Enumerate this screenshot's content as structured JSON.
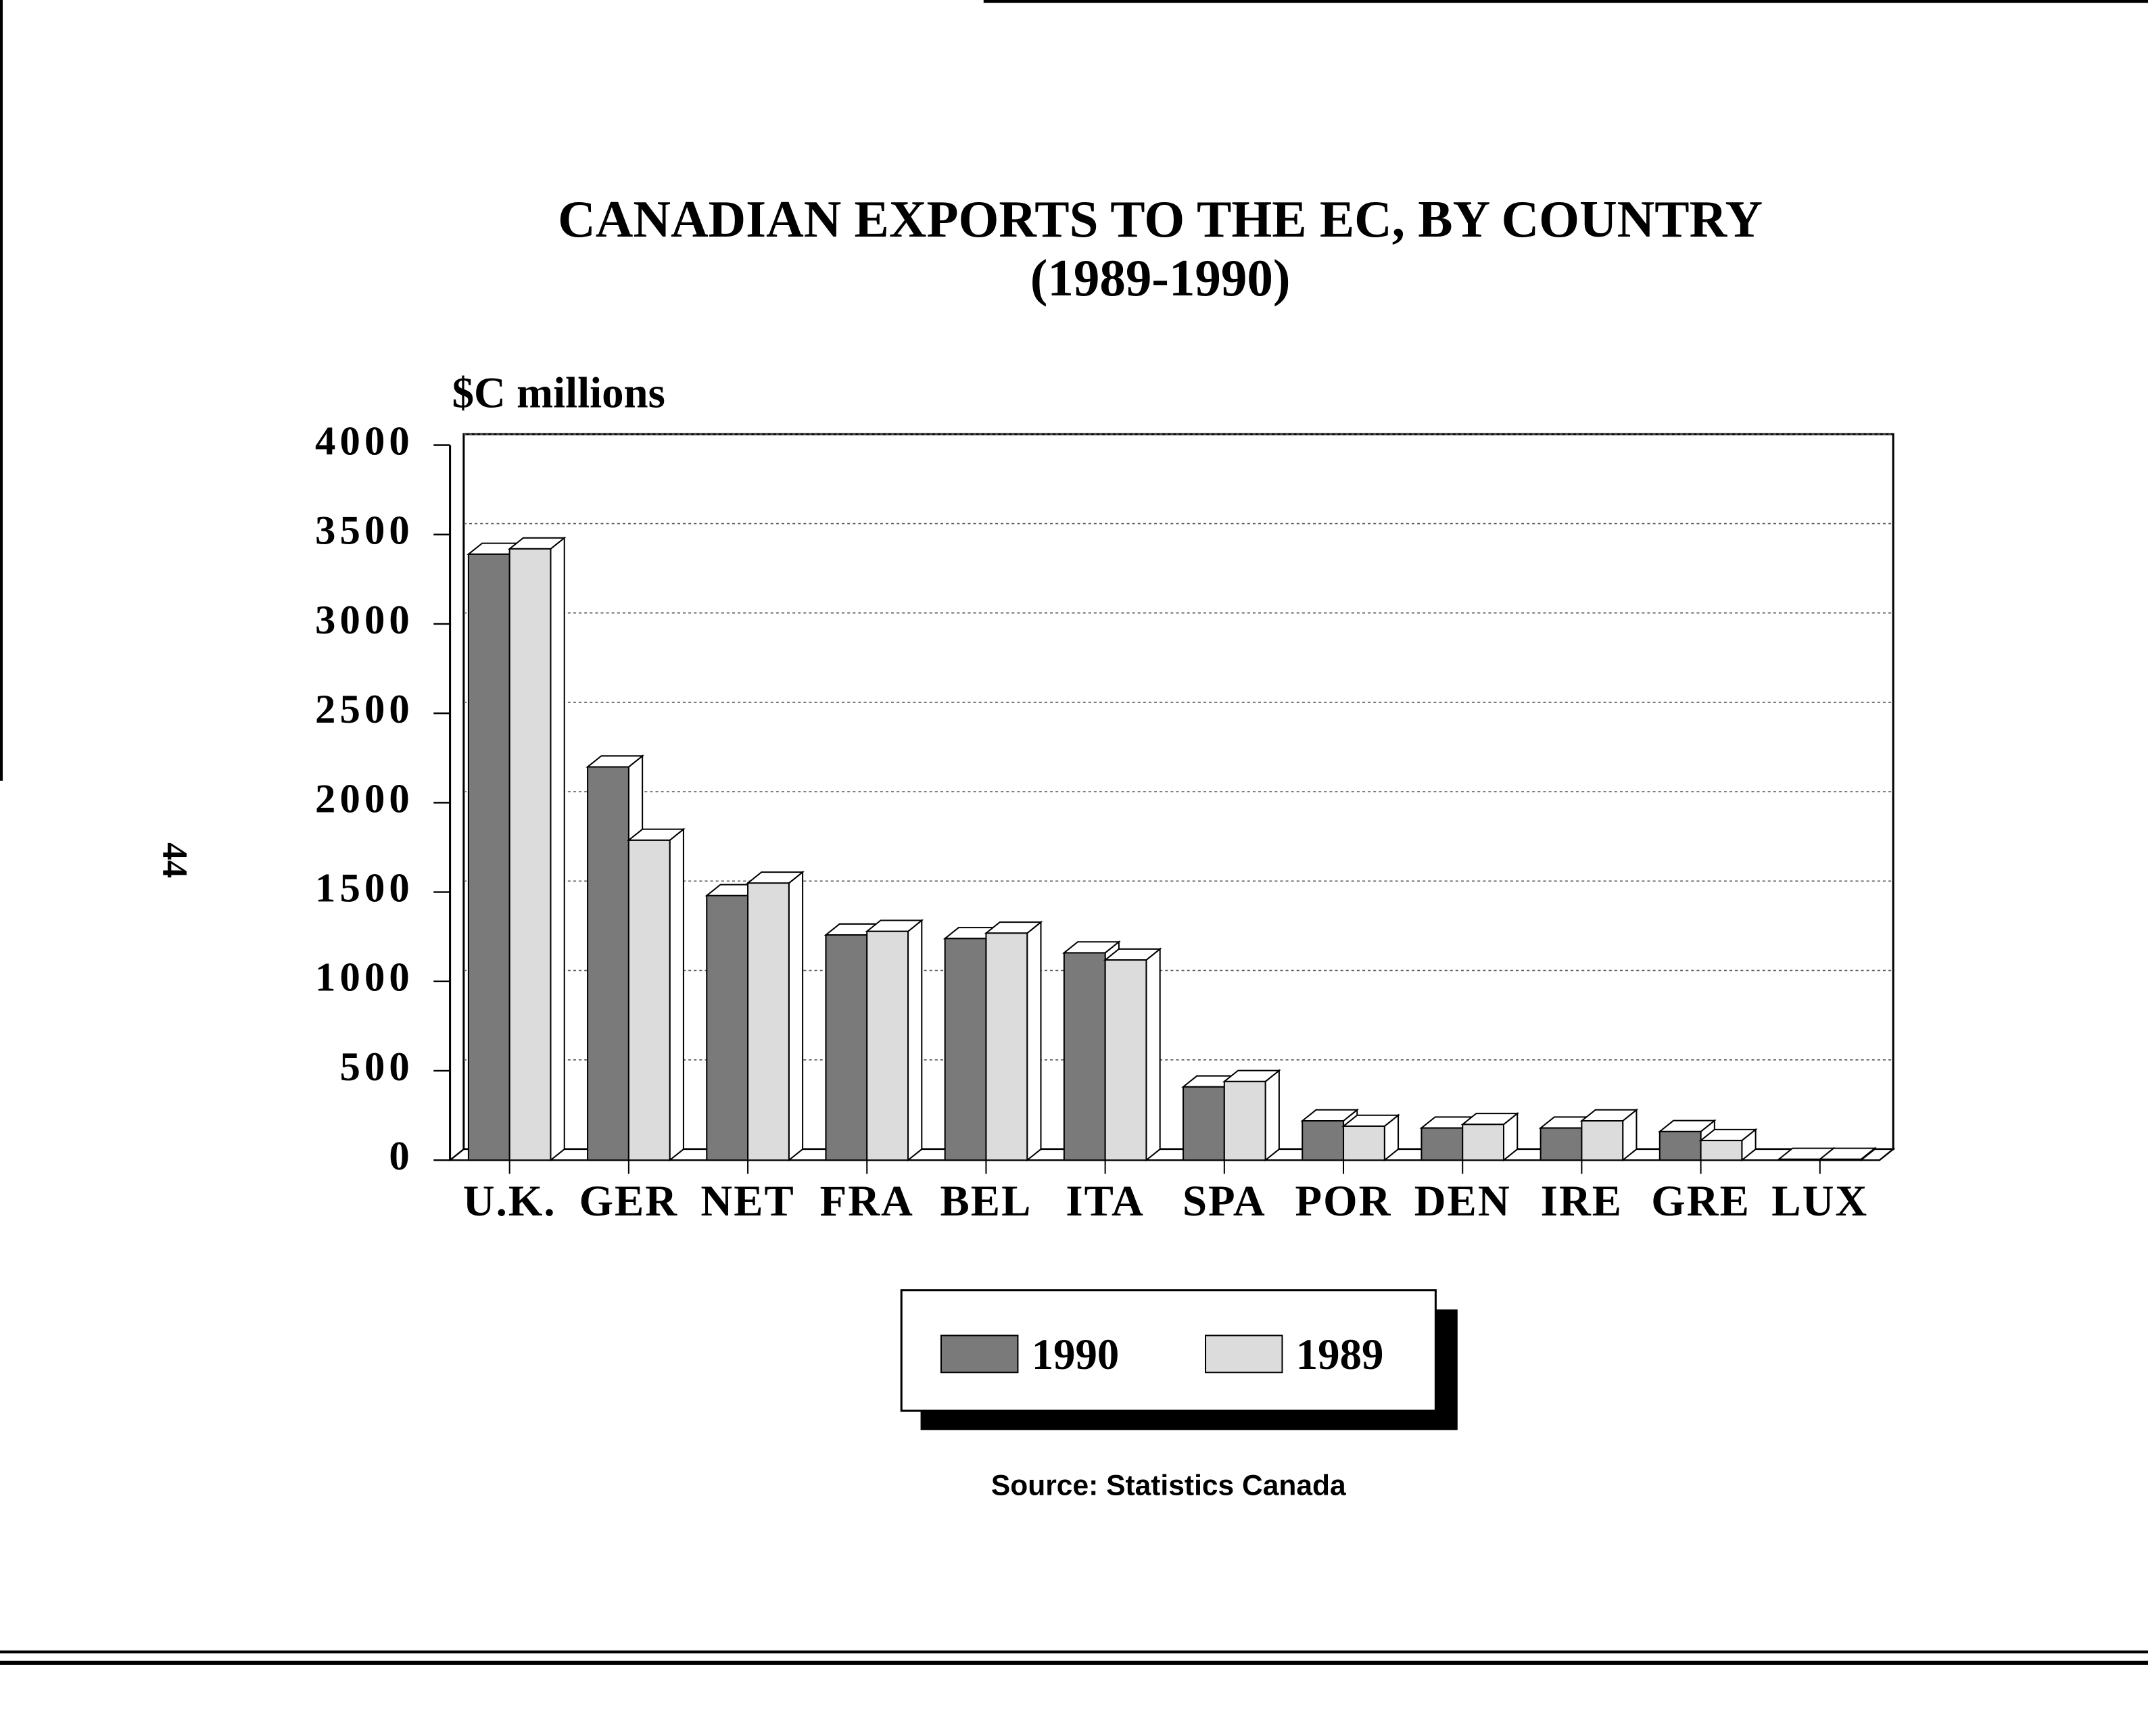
{
  "chart_data": {
    "type": "bar",
    "title": "CANADIAN EXPORTS TO THE EC, BY COUNTRY",
    "subtitle": "(1989-1990)",
    "y_label": "$C millions",
    "source": "Source: Statistics Canada",
    "categories": [
      "U.K.",
      "GER",
      "NET",
      "FRA",
      "BEL",
      "ITA",
      "SPA",
      "POR",
      "DEN",
      "IRE",
      "GRE",
      "LUX"
    ],
    "series": [
      {
        "name": "1990",
        "color": "#7a7a7a",
        "values": [
          3390,
          2200,
          1480,
          1260,
          1240,
          1160,
          410,
          220,
          180,
          180,
          160,
          5
        ]
      },
      {
        "name": "1989",
        "color": "#dcdcdc",
        "values": [
          3420,
          1790,
          1550,
          1280,
          1270,
          1120,
          440,
          190,
          200,
          220,
          110,
          5
        ]
      }
    ],
    "ylim": [
      0,
      4000
    ],
    "yticks": [
      0,
      500,
      1000,
      1500,
      2000,
      2500,
      3000,
      3500,
      4000
    ],
    "grid": true
  },
  "page_number": "44"
}
